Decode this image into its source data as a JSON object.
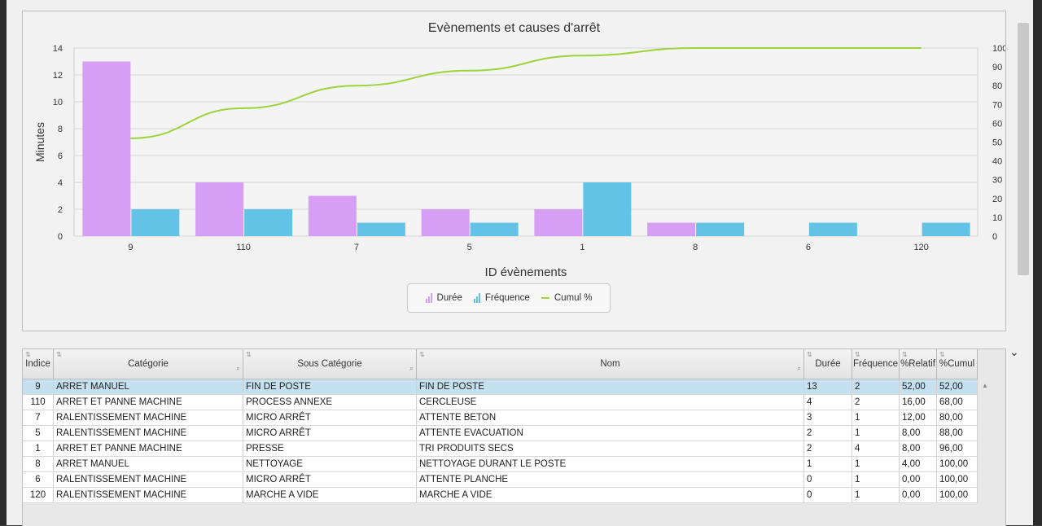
{
  "chart": {
    "title": "Evènements et causes d'arrêt",
    "ylabel_left": "Minutes",
    "xlabel": "ID évènements",
    "legend": [
      {
        "label": "Durée",
        "color": "#d79ef5"
      },
      {
        "label": "Fréquence",
        "color": "#63c3e6"
      },
      {
        "label": "Cumul %",
        "color": "#9bd43c"
      }
    ]
  },
  "chart_data": {
    "type": "bar",
    "title": "Evènements et causes d'arrêt",
    "xlabel": "ID évènements",
    "ylabel": "Minutes",
    "categories": [
      "9",
      "110",
      "7",
      "5",
      "1",
      "8",
      "6",
      "120"
    ],
    "series": [
      {
        "name": "Durée",
        "type": "bar",
        "axis": "left",
        "values": [
          13,
          4,
          3,
          2,
          2,
          1,
          0,
          0
        ]
      },
      {
        "name": "Fréquence",
        "type": "bar",
        "axis": "left",
        "values": [
          2,
          2,
          1,
          1,
          4,
          1,
          1,
          1
        ]
      },
      {
        "name": "Cumul %",
        "type": "line",
        "axis": "right",
        "values": [
          52,
          68,
          80,
          88,
          96,
          100,
          100,
          100
        ]
      }
    ],
    "ylim": [
      0,
      14
    ],
    "y_ticks": [
      0,
      2,
      4,
      6,
      8,
      10,
      12,
      14
    ],
    "y2lim": [
      0,
      100
    ],
    "y2_ticks": [
      0,
      10,
      20,
      30,
      40,
      50,
      60,
      70,
      80,
      90,
      100
    ],
    "grid": true,
    "legend_position": "bottom"
  },
  "table": {
    "columns": [
      "Indice",
      "Catégorie",
      "Sous Catégorie",
      "Nom",
      "Durée",
      "Fréquence",
      "%Relatif",
      "%Cumul"
    ],
    "rows": [
      [
        "9",
        "ARRET MANUEL",
        "FIN DE POSTE",
        "FIN DE POSTE",
        "13",
        "2",
        "52,00",
        "52,00"
      ],
      [
        "110",
        "ARRET ET PANNE MACHINE",
        "PROCESS ANNEXE",
        "CERCLEUSE",
        "4",
        "2",
        "16,00",
        "68,00"
      ],
      [
        "7",
        "RALENTISSEMENT MACHINE",
        "MICRO ARRÊT",
        "ATTENTE BETON",
        "3",
        "1",
        "12,00",
        "80,00"
      ],
      [
        "5",
        "RALENTISSEMENT MACHINE",
        "MICRO ARRÊT",
        "ATTENTE EVACUATION",
        "2",
        "1",
        "8,00",
        "88,00"
      ],
      [
        "1",
        "ARRET ET PANNE MACHINE",
        "PRESSE",
        "TRI PRODUITS SECS",
        "2",
        "4",
        "8,00",
        "96,00"
      ],
      [
        "8",
        "ARRET MANUEL",
        "NETTOYAGE",
        "NETTOYAGE DURANT LE POSTE",
        "1",
        "1",
        "4,00",
        "100,00"
      ],
      [
        "6",
        "RALENTISSEMENT MACHINE",
        "MICRO ARRÊT",
        "ATTENTE PLANCHE",
        "0",
        "1",
        "0,00",
        "100,00"
      ],
      [
        "120",
        "RALENTISSEMENT MACHINE",
        "MARCHE A VIDE",
        "MARCHE A VIDE",
        "0",
        "1",
        "0,00",
        "100,00"
      ]
    ],
    "selected_row": 0
  }
}
